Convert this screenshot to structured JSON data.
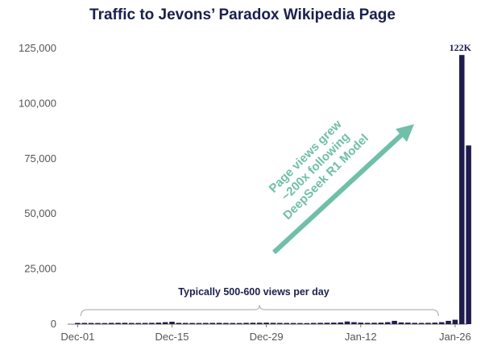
{
  "chart_data": {
    "type": "bar",
    "title": "Traffic to Jevons’ Paradox Wikipedia Page",
    "xlabel": "",
    "ylabel": "",
    "ylim": [
      0,
      125000
    ],
    "yticks": [
      0,
      25000,
      50000,
      75000,
      100000,
      125000
    ],
    "ytick_labels": [
      "0",
      "25,000",
      "50,000",
      "75,000",
      "100,000",
      "125,000"
    ],
    "xtick_labels": [
      "Dec-01",
      "Dec-15",
      "Dec-29",
      "Jan-12",
      "Jan-26"
    ],
    "xtick_days": [
      0,
      14,
      28,
      42,
      56
    ],
    "days": [
      0,
      1,
      2,
      3,
      4,
      5,
      6,
      7,
      8,
      9,
      10,
      11,
      12,
      13,
      14,
      15,
      16,
      17,
      18,
      19,
      20,
      21,
      22,
      23,
      24,
      25,
      26,
      27,
      28,
      29,
      30,
      31,
      32,
      33,
      34,
      35,
      36,
      37,
      38,
      39,
      40,
      41,
      42,
      43,
      44,
      45,
      46,
      47,
      48,
      49,
      50,
      51,
      52,
      53,
      54,
      55,
      56,
      57,
      58
    ],
    "values": [
      550,
      560,
      540,
      520,
      500,
      580,
      600,
      620,
      540,
      530,
      560,
      600,
      700,
      900,
      1100,
      600,
      560,
      540,
      520,
      560,
      580,
      600,
      560,
      540,
      520,
      600,
      640,
      660,
      700,
      600,
      560,
      540,
      520,
      500,
      480,
      560,
      600,
      640,
      700,
      800,
      1200,
      900,
      700,
      600,
      640,
      700,
      900,
      1500,
      800,
      700,
      600,
      560,
      600,
      700,
      900,
      1500,
      2000,
      122000,
      81000
    ],
    "peak_label": "122K",
    "bracket_label": "Typically 500-600 views per day",
    "annotation_lines": [
      "Page views grew",
      "~200x following",
      "DeepSeek R1 Model"
    ],
    "colors": {
      "bar": "#1f1c4d",
      "axis_text": "#555555",
      "title": "#1a1f4e",
      "arrow": "#6fbfa9",
      "bracket": "#b8b8b8"
    }
  }
}
